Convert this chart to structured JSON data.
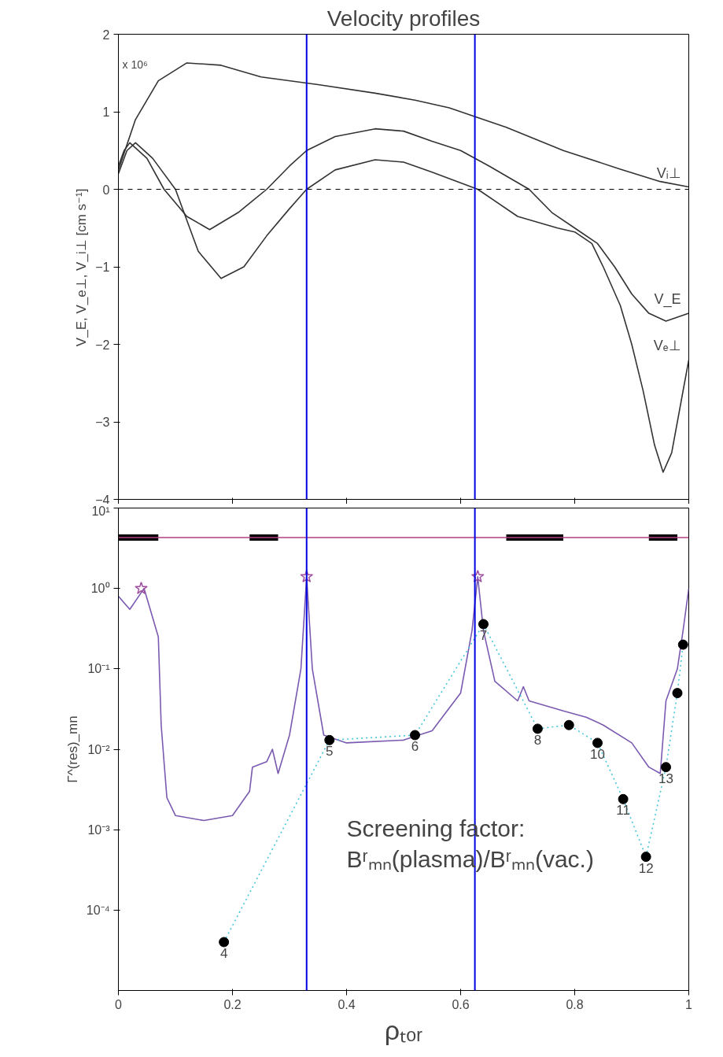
{
  "chart_data": [
    {
      "type": "line",
      "title": "Velocity profiles",
      "ylabel": "V_E, V_e⊥, V_i⊥  [cm s⁻¹]",
      "xlim": [
        0,
        1
      ],
      "xticks": [
        0,
        0.2,
        0.4,
        0.6,
        0.8,
        1
      ],
      "ylim": [
        -4,
        2
      ],
      "yticks": [
        {
          "value": -4,
          "label": "−4"
        },
        {
          "value": -3,
          "label": "−3"
        },
        {
          "value": -2,
          "label": "−2"
        },
        {
          "value": -1,
          "label": "−1"
        },
        0,
        1,
        2
      ],
      "tick_labels": "y",
      "grid": false,
      "annotations": [
        "x 10⁶"
      ],
      "ref_lines": [
        {
          "axis": "y",
          "value": 0,
          "color": "#000000",
          "line_style": "dashed"
        },
        {
          "axis": "x",
          "value": 0.33,
          "color": "#0000e0",
          "line_style": "solid"
        },
        {
          "axis": "x",
          "value": 0.625,
          "color": "#0000e0",
          "line_style": "solid"
        }
      ],
      "series": [
        {
          "name": "Vᵢ⊥",
          "color": "#333333",
          "line_style": "solid",
          "x": [
            0,
            0.03,
            0.07,
            0.12,
            0.18,
            0.25,
            0.35,
            0.45,
            0.52,
            0.58,
            0.68,
            0.78,
            0.88,
            0.95,
            1.0
          ],
          "values": [
            0.25,
            0.9,
            1.4,
            1.63,
            1.6,
            1.45,
            1.35,
            1.24,
            1.15,
            1.05,
            0.8,
            0.5,
            0.26,
            0.1,
            0.03
          ]
        },
        {
          "name": "V_E",
          "color": "#333333",
          "line_style": "solid",
          "x": [
            0,
            0.01,
            0.02,
            0.05,
            0.08,
            0.12,
            0.16,
            0.21,
            0.26,
            0.3,
            0.33,
            0.38,
            0.45,
            0.5,
            0.55,
            0.6,
            0.65,
            0.72,
            0.76,
            0.8,
            0.84,
            0.87,
            0.9,
            0.93,
            0.96,
            1.0
          ],
          "values": [
            0.3,
            0.5,
            0.6,
            0.4,
            0.0,
            -0.35,
            -0.52,
            -0.3,
            0.0,
            0.3,
            0.5,
            0.68,
            0.78,
            0.75,
            0.62,
            0.5,
            0.3,
            0.0,
            -0.3,
            -0.5,
            -0.7,
            -1.0,
            -1.35,
            -1.6,
            -1.7,
            -1.6
          ]
        },
        {
          "name": "Vₑ⊥",
          "color": "#333333",
          "line_style": "solid",
          "x": [
            0,
            0.015,
            0.03,
            0.06,
            0.1,
            0.14,
            0.18,
            0.22,
            0.26,
            0.3,
            0.33,
            0.38,
            0.45,
            0.5,
            0.55,
            0.63,
            0.7,
            0.77,
            0.8,
            0.83,
            0.85,
            0.88,
            0.9,
            0.92,
            0.94,
            0.955,
            0.97,
            0.98,
            1.0
          ],
          "values": [
            0.2,
            0.5,
            0.6,
            0.4,
            0.0,
            -0.8,
            -1.15,
            -1.0,
            -0.6,
            -0.25,
            0.0,
            0.25,
            0.38,
            0.35,
            0.22,
            0.0,
            -0.35,
            -0.5,
            -0.55,
            -0.7,
            -1.0,
            -1.5,
            -2.0,
            -2.6,
            -3.3,
            -3.65,
            -3.4,
            -3.0,
            -2.2
          ]
        }
      ]
    },
    {
      "type": "line",
      "xlabel": "ρₜₒᵣ",
      "ylabel": "Γ^(res)_mn",
      "log": true,
      "xlim": [
        0,
        1
      ],
      "xticks": [
        0,
        0.2,
        0.4,
        0.6,
        0.8,
        1
      ],
      "ylim": [
        1e-05,
        10
      ],
      "yticks": [
        {
          "value": 0.0001,
          "label": "10⁻⁴"
        },
        {
          "value": 0.001,
          "label": "10⁻³"
        },
        {
          "value": 0.01,
          "label": "10⁻²"
        },
        {
          "value": 0.1,
          "label": "10⁻¹"
        },
        {
          "value": 1,
          "label": "10⁰"
        },
        {
          "value": 10,
          "label": "10¹"
        }
      ],
      "grid": false,
      "annotations": [
        "Screening factor:\nBʳₘₙ(plasma)/Bʳₘₙ(vac.)",
        {
          "text": "4",
          "x": 0.185,
          "y": 4e-05
        },
        {
          "text": "5",
          "x": 0.37,
          "y": 0.013
        },
        {
          "text": "6",
          "x": 0.52,
          "y": 0.015
        },
        {
          "text": "7",
          "x": 0.64,
          "y": 0.36
        },
        {
          "text": "8",
          "x": 0.735,
          "y": 0.018
        },
        {
          "text": "10",
          "x": 0.84,
          "y": 0.012
        },
        {
          "text": "11",
          "x": 0.885,
          "y": 0.0024
        },
        {
          "text": "12",
          "x": 0.925,
          "y": 0.00046
        },
        {
          "text": "13",
          "x": 0.96,
          "y": 0.006
        }
      ],
      "ref_lines": [
        {
          "axis": "x",
          "value": 0.33,
          "color": "#0000e0",
          "line_style": "solid"
        },
        {
          "axis": "x",
          "value": 0.625,
          "color": "#0000e0",
          "line_style": "solid"
        }
      ],
      "series": [
        {
          "color": "#000000",
          "line_style": "solid",
          "x": [
            0,
            0.07,
            0.075,
            0.23,
            0.28,
            0.285,
            0.68,
            0.78,
            0.785,
            0.93,
            0.98
          ],
          "values": [
            4.3,
            4.3,
            null,
            4.3,
            4.3,
            null,
            4.3,
            4.3,
            null,
            4.3,
            4.3
          ]
        },
        {
          "color": "#b04080",
          "line_style": "solid",
          "x": [
            0,
            1
          ],
          "values": [
            4.3,
            4.3
          ]
        },
        {
          "color": "#7a5ab0",
          "line_style": "solid",
          "x": [
            0,
            0.02,
            0.045,
            0.07,
            0.075,
            0.08,
            0.085,
            0.1,
            0.15,
            0.2,
            0.23,
            0.235,
            0.26,
            0.27,
            0.28,
            0.3,
            0.32,
            0.33,
            0.34,
            0.36,
            0.4,
            0.5,
            0.55,
            0.6,
            0.62,
            0.63,
            0.64,
            0.66,
            0.7,
            0.71,
            0.72,
            0.78,
            0.82,
            0.85,
            0.9,
            0.93,
            0.95,
            0.96,
            0.98,
            0.99,
            1.0
          ],
          "values": [
            0.8,
            0.55,
            1.0,
            0.25,
            0.02,
            0.007,
            0.0025,
            0.0015,
            0.0013,
            0.0015,
            0.003,
            0.006,
            0.007,
            0.01,
            0.005,
            0.015,
            0.1,
            1.4,
            0.1,
            0.015,
            0.012,
            0.013,
            0.017,
            0.05,
            0.3,
            1.4,
            0.3,
            0.07,
            0.04,
            0.06,
            0.04,
            0.03,
            0.025,
            0.02,
            0.012,
            0.006,
            0.005,
            0.04,
            0.1,
            0.3,
            1.0
          ]
        },
        {
          "type": "scatter",
          "marker": "star",
          "color": "#a050a0",
          "x": [
            0.04,
            0.33,
            0.63
          ],
          "values": [
            1.0,
            1.4,
            1.4
          ]
        },
        {
          "color": "#44c8d8",
          "line_style": "dotted",
          "marker": "circle",
          "x": [
            0.185,
            0.37,
            0.52,
            0.64,
            0.735,
            0.79,
            0.84,
            0.885,
            0.925,
            0.96,
            0.98,
            0.99
          ],
          "values": [
            4e-05,
            0.013,
            0.015,
            0.36,
            0.018,
            0.02,
            0.012,
            0.0024,
            0.00046,
            0.006,
            0.05,
            0.2
          ]
        }
      ]
    }
  ]
}
